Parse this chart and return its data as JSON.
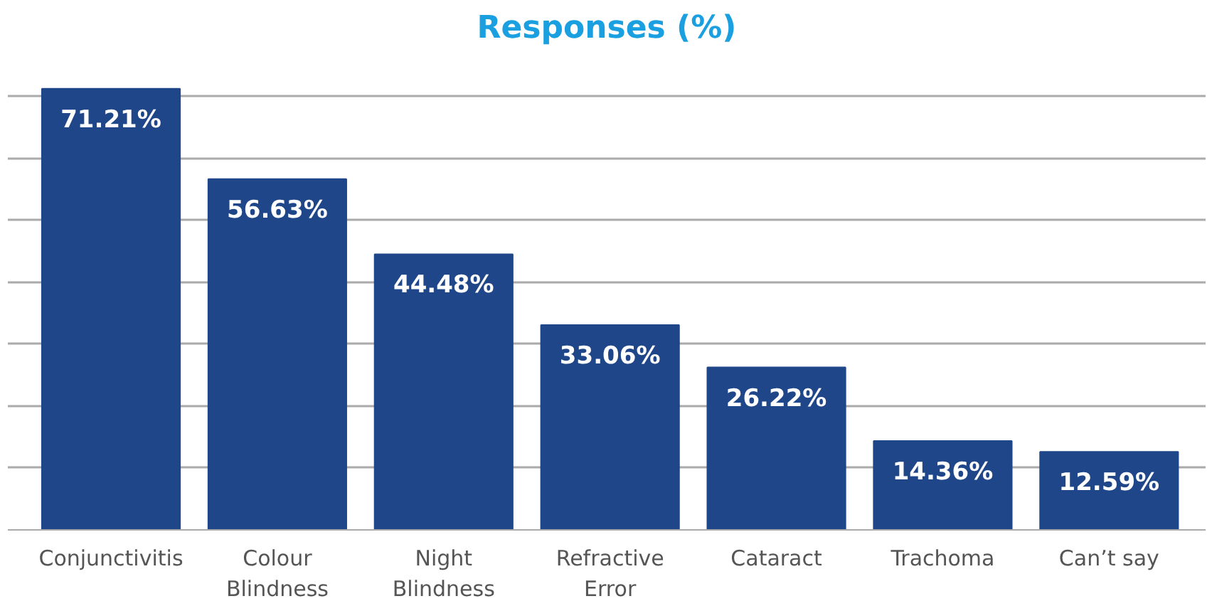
{
  "chart_data": {
    "type": "bar",
    "title": "Responses (%)",
    "categories": [
      "Conjunctivitis",
      "Colour\nBlindness",
      "Night\nBlindness",
      "Refractive\nError",
      "Cataract",
      "Trachoma",
      "Can’t say"
    ],
    "values": [
      71.21,
      56.63,
      44.48,
      33.06,
      26.22,
      14.36,
      12.59
    ],
    "value_labels": [
      "71.21%",
      "56.63%",
      "44.48%",
      "33.06%",
      "26.22%",
      "14.36%",
      "12.59%"
    ],
    "color": "#1f4689",
    "grid": "y",
    "tick_labels": "x"
  }
}
